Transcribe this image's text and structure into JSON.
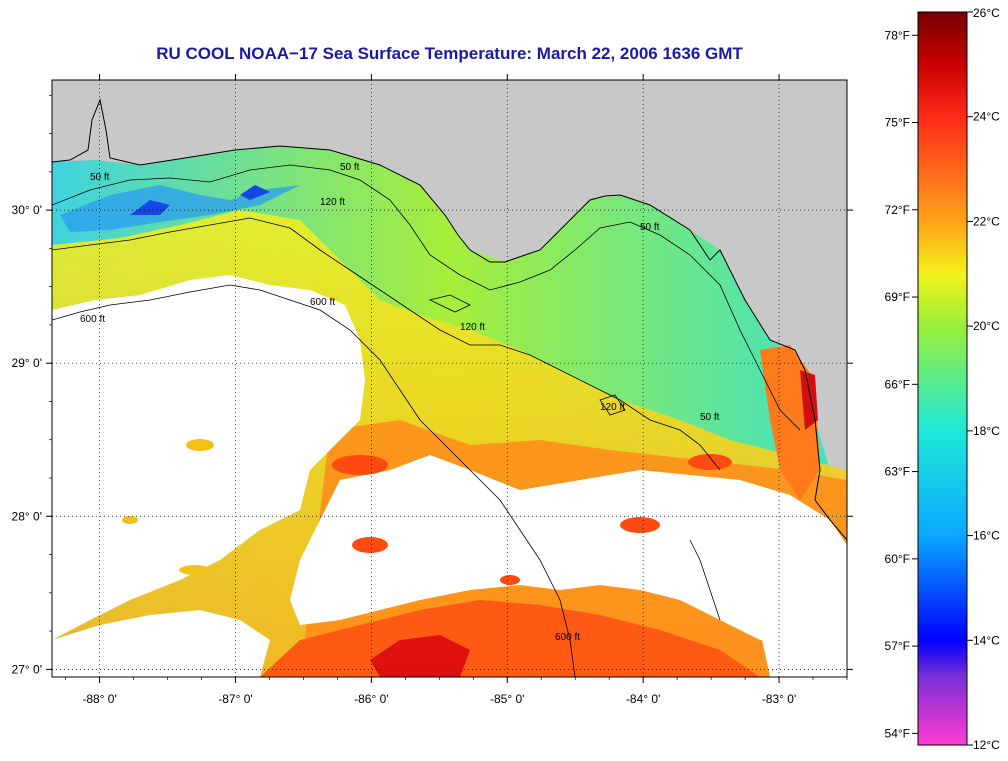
{
  "title": "RU COOL  NOAA−17  Sea Surface Temperature:  March 22, 2006 1636 GMT",
  "map": {
    "lon_ticks": [
      {
        "value": -88,
        "label": "-88° 0'"
      },
      {
        "value": -87,
        "label": "-87° 0'"
      },
      {
        "value": -86,
        "label": "-86° 0'"
      },
      {
        "value": -85,
        "label": "-85° 0'"
      },
      {
        "value": -84,
        "label": "-84° 0'"
      },
      {
        "value": -83,
        "label": "-83° 0'"
      }
    ],
    "lat_ticks": [
      {
        "value": 30,
        "label": "30° 0'"
      },
      {
        "value": 29,
        "label": "29° 0'"
      },
      {
        "value": 28,
        "label": "28° 0'"
      },
      {
        "value": 27,
        "label": "27° 0'"
      }
    ],
    "lon_range": [
      -88.35,
      -82.5
    ],
    "lat_range": [
      26.95,
      30.85
    ],
    "grid": "dotted",
    "contour_labels": [
      "50 ft",
      "120 ft",
      "600 ft"
    ],
    "colors": {
      "land": "#c8c8c8",
      "cloud": "#ffffff",
      "contour": "#000000"
    }
  },
  "colorbar": {
    "celsius": [
      "26°C",
      "24°C",
      "22°C",
      "20°C",
      "18°C",
      "16°C",
      "14°C",
      "12°C"
    ],
    "fahrenheit": [
      "78°F",
      "75°F",
      "72°F",
      "69°F",
      "66°F",
      "63°F",
      "60°F",
      "57°F",
      "54°F"
    ],
    "celsius_range": [
      12,
      26
    ],
    "stops": [
      {
        "value": 12,
        "color": "#ff3cd2"
      },
      {
        "value": 13.3,
        "color": "#7a2fd6"
      },
      {
        "value": 14,
        "color": "#0000ff"
      },
      {
        "value": 16,
        "color": "#0aa8ff"
      },
      {
        "value": 18,
        "color": "#1ee8d8"
      },
      {
        "value": 20,
        "color": "#9aef3a"
      },
      {
        "value": 21,
        "color": "#f3f21a"
      },
      {
        "value": 22,
        "color": "#ffa31a"
      },
      {
        "value": 24,
        "color": "#ff2a1a"
      },
      {
        "value": 25,
        "color": "#c80000"
      },
      {
        "value": 26,
        "color": "#780000"
      }
    ]
  }
}
